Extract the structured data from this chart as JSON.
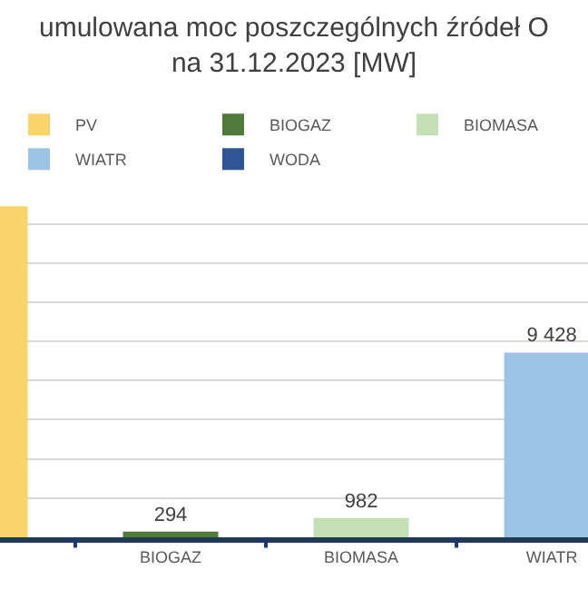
{
  "chart_data": {
    "type": "bar",
    "title": "umulowana moc poszczególnych źródeł O\nna 31.12.2023 [MW]",
    "categories": [
      null,
      "BIOGAZ",
      "BIOMASA",
      "WIATR"
    ],
    "series": [
      {
        "name": "PV",
        "color": "#f9d46b",
        "values": [
          16900,
          null,
          null,
          null
        ],
        "value_labels": [
          null,
          null,
          null,
          null
        ]
      },
      {
        "name": "BIOGAZ",
        "color": "#4f7a3a",
        "values": [
          null,
          294,
          null,
          null
        ],
        "value_labels": [
          null,
          "294",
          null,
          null
        ]
      },
      {
        "name": "BIOMASA",
        "color": "#c5e0b4",
        "values": [
          null,
          null,
          982,
          null
        ],
        "value_labels": [
          null,
          null,
          "982",
          null
        ]
      },
      {
        "name": "WIATR",
        "color": "#9dc3e6",
        "values": [
          null,
          null,
          null,
          9428
        ],
        "value_labels": [
          null,
          null,
          null,
          "9 428"
        ]
      },
      {
        "name": "WODA",
        "color": "#2f5597",
        "values": [
          null,
          null,
          null,
          null
        ]
      }
    ],
    "grid": "y",
    "legend": "top",
    "tick_labels": "x"
  }
}
